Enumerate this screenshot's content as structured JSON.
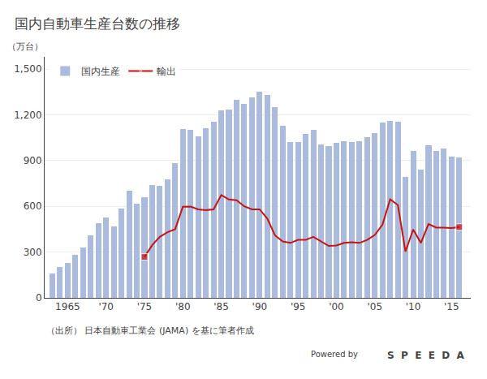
{
  "chart_data": {
    "type": "bar",
    "title": "国内自動車生産台数の推移",
    "ylabel": "（万台）",
    "annotations": [
      "（出所） 日本自動車工業会 (JAMA) を基に筆者作成",
      "Powered by",
      "S  P  E  E  D  A"
    ],
    "x": [
      1963,
      1964,
      1965,
      1966,
      1967,
      1968,
      1969,
      1970,
      1971,
      1972,
      1973,
      1974,
      1975,
      1976,
      1977,
      1978,
      1979,
      1980,
      1981,
      1982,
      1983,
      1984,
      1985,
      1986,
      1987,
      1988,
      1989,
      1990,
      1991,
      1992,
      1993,
      1994,
      1995,
      1996,
      1997,
      1998,
      1999,
      2000,
      2001,
      2002,
      2003,
      2004,
      2005,
      2006,
      2007,
      2008,
      2009,
      2010,
      2011,
      2012,
      2013,
      2014,
      2015,
      2016
    ],
    "series": [
      {
        "name": "国内生産",
        "type": "bar",
        "color": "#aabbdd",
        "values": [
          160,
          200,
          230,
          280,
          330,
          410,
          490,
          529,
          470,
          586,
          700,
          617,
          658,
          740,
          733,
          776,
          882,
          1104,
          1099,
          1059,
          1112,
          1152,
          1227,
          1236,
          1300,
          1269,
          1315,
          1349,
          1329,
          1250,
          1128,
          1019,
          1021,
          1072,
          1102,
          1005,
          993,
          1014,
          1027,
          1023,
          1029,
          1051,
          1080,
          1148,
          1160,
          1157,
          793,
          963,
          838,
          998,
          963,
          977,
          927,
          920
        ]
      },
      {
        "name": "輸出",
        "type": "line",
        "color": "#cc1111",
        "marker": "square",
        "markers_at": [
          1975,
          2016
        ],
        "values": [
          null,
          null,
          null,
          null,
          null,
          null,
          null,
          null,
          null,
          null,
          null,
          null,
          268,
          345,
          400,
          430,
          450,
          597,
          598,
          580,
          575,
          580,
          673,
          645,
          640,
          600,
          580,
          580,
          520,
          410,
          370,
          360,
          380,
          380,
          400,
          370,
          340,
          343,
          360,
          365,
          360,
          380,
          412,
          480,
          646,
          609,
          303,
          448,
          360,
          483,
          460,
          460,
          457,
          464
        ]
      }
    ],
    "xlim": [
      1962.0,
      2017.5
    ],
    "xticks": [
      1965,
      {
        "value": 1970,
        "label": "'70"
      },
      {
        "value": 1975,
        "label": "'75"
      },
      {
        "value": 1980,
        "label": "'80"
      },
      {
        "value": 1985,
        "label": "'85"
      },
      {
        "value": 1990,
        "label": "'90"
      },
      {
        "value": 1995,
        "label": "'95"
      },
      {
        "value": 2000,
        "label": "'00"
      },
      {
        "value": 2005,
        "label": "'05"
      },
      {
        "value": 2010,
        "label": "'10"
      },
      {
        "value": 2015,
        "label": "'15"
      }
    ],
    "ylim": [
      0,
      1580
    ],
    "yticks": [
      0,
      300,
      600,
      900,
      {
        "value": 1200,
        "label": "1,200"
      },
      {
        "value": 1500,
        "label": "1,500"
      }
    ],
    "grid": true,
    "legend": "upper left"
  }
}
